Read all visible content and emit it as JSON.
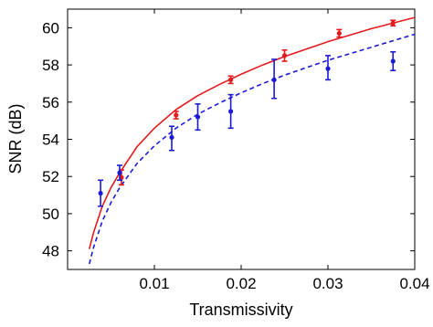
{
  "chart_data": {
    "type": "scatter",
    "xlabel": "Transmissivity",
    "ylabel": "SNR (dB)",
    "xlim": [
      0.0,
      0.04
    ],
    "ylim": [
      47.0,
      61.0
    ],
    "xticks": [
      0.01,
      0.02,
      0.03,
      0.04
    ],
    "xtick_labels": [
      "0.01",
      "0.02",
      "0.03",
      "0.04"
    ],
    "yticks": [
      48,
      50,
      52,
      54,
      56,
      58,
      60
    ],
    "ytick_labels": [
      "48",
      "50",
      "52",
      "54",
      "56",
      "58",
      "60"
    ],
    "grid": false,
    "series": [
      {
        "kind": "points",
        "color": "#e31a1c",
        "points": [
          {
            "x": 0.0062,
            "y": 51.95,
            "lo": 51.55,
            "hi": 52.35
          },
          {
            "x": 0.0125,
            "y": 55.3,
            "lo": 55.1,
            "hi": 55.5
          },
          {
            "x": 0.0188,
            "y": 57.2,
            "lo": 57.0,
            "hi": 57.4
          },
          {
            "x": 0.025,
            "y": 58.5,
            "lo": 58.2,
            "hi": 58.8
          },
          {
            "x": 0.0313,
            "y": 59.7,
            "lo": 59.5,
            "hi": 59.9
          },
          {
            "x": 0.0375,
            "y": 60.25,
            "lo": 60.1,
            "hi": 60.4
          }
        ]
      },
      {
        "kind": "points",
        "color": "#1a1ad6",
        "points": [
          {
            "x": 0.0038,
            "y": 51.1,
            "lo": 50.4,
            "hi": 51.8
          },
          {
            "x": 0.006,
            "y": 52.2,
            "lo": 51.8,
            "hi": 52.6
          },
          {
            "x": 0.012,
            "y": 54.1,
            "lo": 53.4,
            "hi": 54.7
          },
          {
            "x": 0.015,
            "y": 55.2,
            "lo": 54.5,
            "hi": 55.9
          },
          {
            "x": 0.0188,
            "y": 55.5,
            "lo": 54.6,
            "hi": 56.4
          },
          {
            "x": 0.0238,
            "y": 57.2,
            "lo": 56.2,
            "hi": 58.3
          },
          {
            "x": 0.03,
            "y": 57.8,
            "lo": 57.2,
            "hi": 58.5
          },
          {
            "x": 0.0375,
            "y": 58.2,
            "lo": 57.7,
            "hi": 58.7
          }
        ]
      },
      {
        "kind": "line",
        "style": "solid",
        "color": "#e31a1c",
        "x": [
          0.0025,
          0.003,
          0.004,
          0.005,
          0.006,
          0.008,
          0.01,
          0.0125,
          0.015,
          0.0175,
          0.02,
          0.0225,
          0.025,
          0.0275,
          0.03,
          0.0325,
          0.035,
          0.0375,
          0.04
        ],
        "y": [
          48.1,
          49.0,
          50.4,
          51.4,
          52.2,
          53.6,
          54.6,
          55.6,
          56.35,
          56.95,
          57.5,
          58.0,
          58.45,
          58.85,
          59.25,
          59.6,
          59.95,
          60.25,
          60.55
        ]
      },
      {
        "kind": "line",
        "style": "dashed",
        "color": "#1a1ad6",
        "x": [
          0.0025,
          0.003,
          0.004,
          0.005,
          0.006,
          0.008,
          0.01,
          0.0125,
          0.015,
          0.0175,
          0.02,
          0.0225,
          0.025,
          0.0275,
          0.03,
          0.0325,
          0.035,
          0.0375,
          0.04
        ],
        "y": [
          47.3,
          48.2,
          49.6,
          50.6,
          51.4,
          52.7,
          53.65,
          54.6,
          55.35,
          55.95,
          56.5,
          57.0,
          57.45,
          57.85,
          58.25,
          58.6,
          58.95,
          59.3,
          59.65
        ]
      }
    ]
  }
}
